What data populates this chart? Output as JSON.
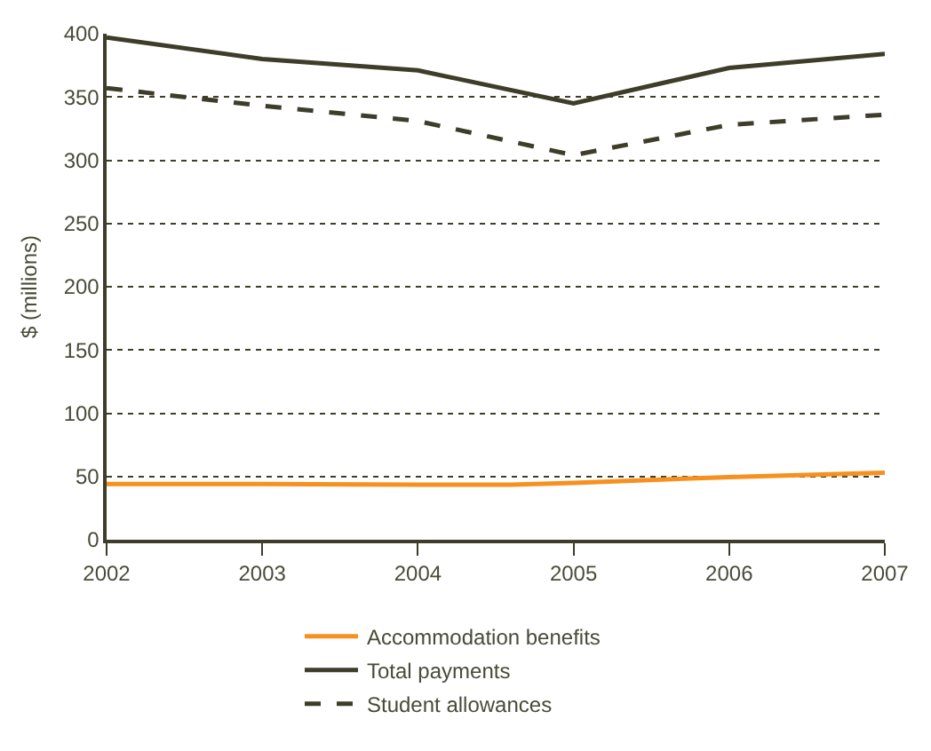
{
  "chart_data": {
    "type": "line",
    "ylabel": "$ (millions)",
    "x": [
      2002,
      2003,
      2004,
      2005,
      2006,
      2007
    ],
    "xlim": [
      2002,
      2007
    ],
    "xticks": [
      2002,
      2003,
      2004,
      2005,
      2006,
      2007
    ],
    "ylim": [
      0,
      400
    ],
    "yticks": [
      0,
      50,
      100,
      150,
      200,
      250,
      300,
      350,
      400
    ],
    "grid": "y",
    "legend": "bottom",
    "marker": "none",
    "series": [
      {
        "name": "Accommodation benefits",
        "color": "#f7901e",
        "line_style": "solid",
        "x": [
          2002,
          2003,
          2004,
          2004.6,
          2005,
          2006,
          2007
        ],
        "values": [
          44,
          44,
          43.5,
          43.5,
          45,
          49.5,
          53
        ]
      },
      {
        "name": "Total payments",
        "color": "#3d3d29",
        "line_style": "solid",
        "values": [
          397,
          380,
          371,
          345,
          373,
          384
        ]
      },
      {
        "name": "Student allowances",
        "color": "#3d3d29",
        "line_style": "dashed",
        "values": [
          357,
          343,
          331,
          304,
          328,
          336
        ]
      }
    ]
  }
}
